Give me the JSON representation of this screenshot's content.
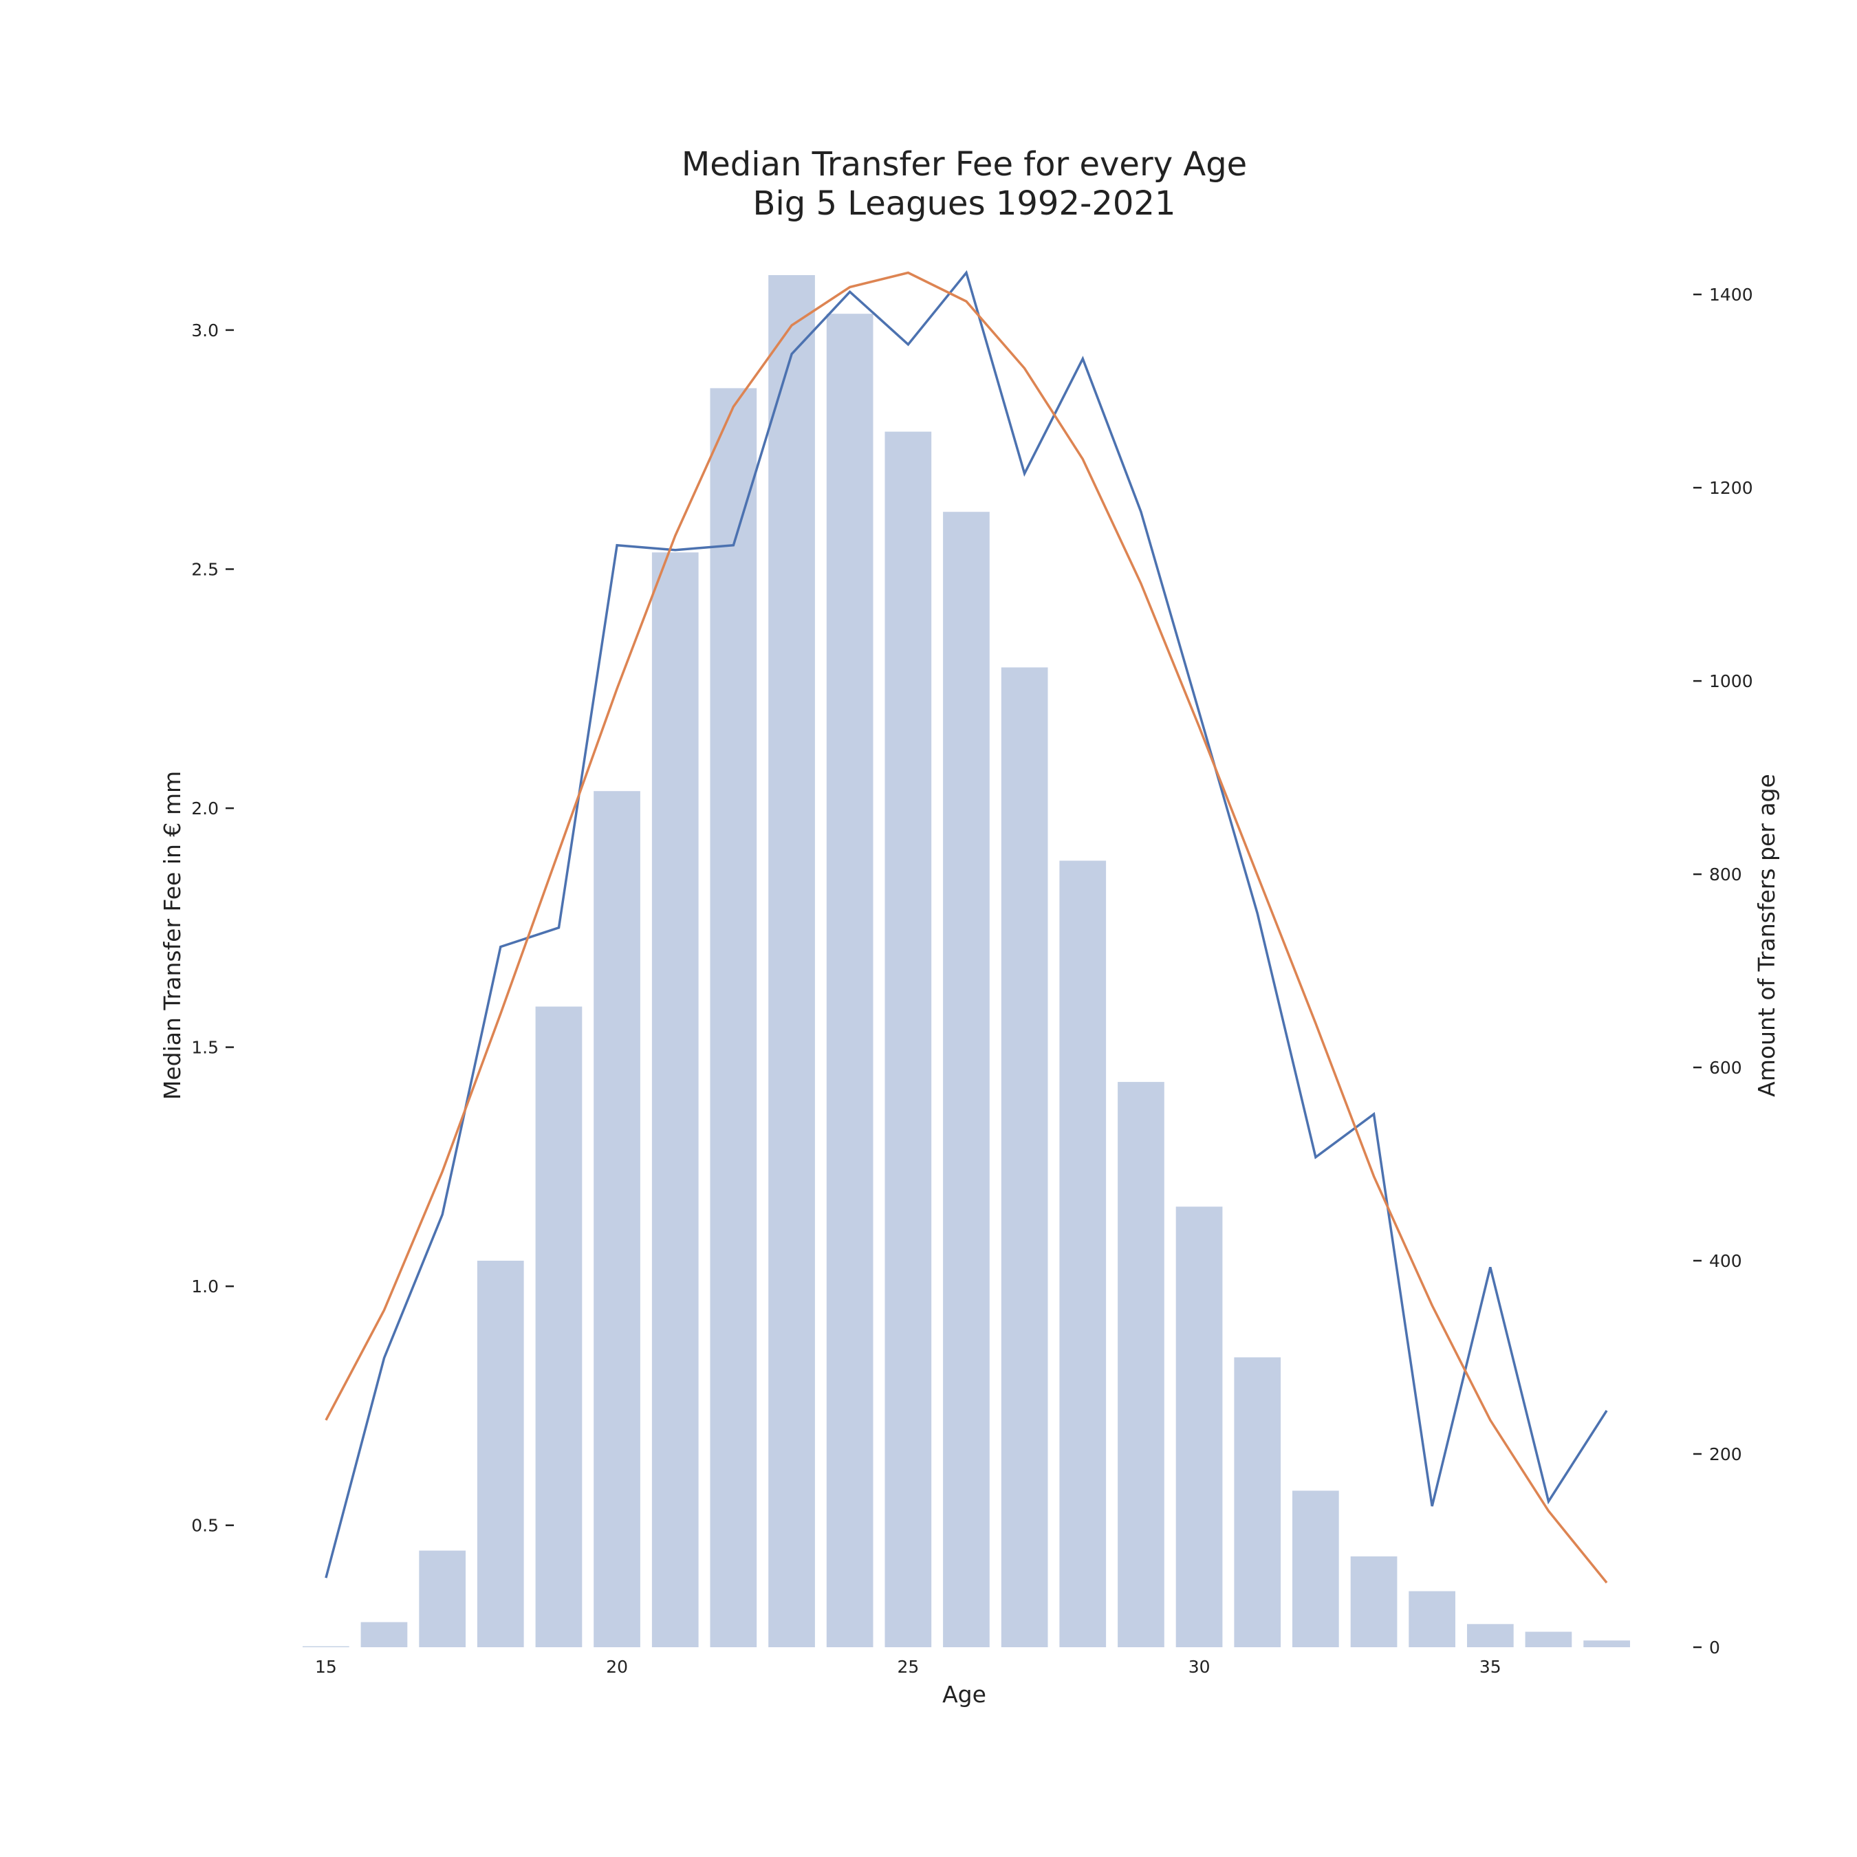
{
  "chart_data": {
    "type": "bar",
    "title": [
      "Median Transfer Fee for every Age",
      "Big 5 Leagues 1992-2021"
    ],
    "xlabel": "Age",
    "ylabel_left": "Median Transfer Fee in € mm",
    "ylabel_right": "Amount of Transfers per age",
    "x": [
      15,
      16,
      17,
      18,
      19,
      20,
      21,
      22,
      23,
      24,
      25,
      26,
      27,
      28,
      29,
      30,
      31,
      32,
      33,
      34,
      35,
      36,
      37
    ],
    "xticks": [
      15,
      20,
      25,
      30,
      35
    ],
    "xlim": [
      14.6,
      37.4
    ],
    "ylim_left": [
      0.245,
      3.115
    ],
    "ylim_right": [
      0,
      1420
    ],
    "yticks_left": [
      "0.5",
      "1.0",
      "1.5",
      "2.0",
      "2.5",
      "3.0"
    ],
    "yticks_right": [
      "0",
      "200",
      "400",
      "600",
      "800",
      "1000",
      "1200",
      "1400"
    ],
    "grid": false,
    "series": [
      {
        "axis": "right",
        "kind": "bar",
        "color": "#c3cfe4",
        "values": [
          1,
          26,
          100,
          400,
          663,
          886,
          1133,
          1303,
          1420,
          1380,
          1258,
          1175,
          1014,
          814,
          585,
          456,
          300,
          162,
          94,
          58,
          24,
          16,
          7
        ]
      },
      {
        "axis": "left",
        "kind": "line",
        "color": "#4c72b0",
        "values": [
          0.39,
          0.85,
          1.15,
          1.71,
          1.75,
          2.55,
          2.54,
          2.55,
          2.95,
          3.08,
          2.97,
          3.12,
          2.7,
          2.94,
          2.62,
          2.2,
          1.78,
          1.27,
          1.36,
          0.54,
          1.04,
          0.55,
          0.74
        ]
      },
      {
        "axis": "left",
        "kind": "line",
        "color": "#dd8452",
        "values": [
          0.72,
          0.95,
          1.24,
          1.57,
          1.91,
          2.25,
          2.57,
          2.84,
          3.01,
          3.09,
          3.12,
          3.06,
          2.92,
          2.73,
          2.47,
          2.17,
          1.86,
          1.55,
          1.23,
          0.96,
          0.72,
          0.53,
          0.38
        ]
      }
    ]
  }
}
